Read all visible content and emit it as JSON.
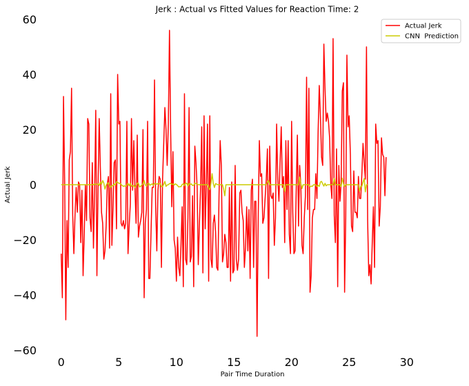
{
  "chart_data": {
    "type": "line",
    "title": "Jerk : Actual vs Fitted Values for Reaction Time: 2",
    "xlabel": "Pair Time Duration",
    "ylabel": "Actual Jerk",
    "xlim": [
      -1.6,
      34.5
    ],
    "ylim": [
      -60,
      60
    ],
    "x_ticks": [
      0,
      5,
      10,
      15,
      20,
      25,
      30
    ],
    "x_tick_labels": [
      "0",
      "5",
      "10",
      "15",
      "20",
      "25",
      "30"
    ],
    "y_ticks": [
      -60,
      -40,
      -20,
      0,
      20,
      40,
      60
    ],
    "y_tick_labels": [
      "−60",
      "−40",
      "−20",
      "0",
      "20",
      "40",
      "60"
    ],
    "grid": false,
    "legend_position": "top-right",
    "x_step": 0.1,
    "series": [
      {
        "name": "Actual Jerk",
        "color": "#ff0000",
        "values": [
          -25,
          -41,
          32,
          1,
          -49,
          -13,
          -30,
          9,
          12,
          35,
          -11,
          -25,
          -11,
          -1,
          -10,
          1,
          0,
          -21,
          -2,
          -33,
          -18,
          0,
          -13,
          24,
          22,
          -12,
          -17,
          8,
          -23,
          -3,
          27,
          -33,
          0,
          24,
          6,
          -10,
          -14,
          -27,
          -24,
          -15,
          0,
          3,
          -23,
          33,
          -22,
          -8,
          8,
          9,
          -16,
          40,
          22,
          23,
          -14,
          -15,
          -13,
          -16,
          -14,
          23,
          -25,
          -15,
          -7,
          24,
          -2,
          16,
          -1,
          -14,
          18,
          -19,
          -15,
          -13,
          -10,
          20,
          -41,
          -14,
          -9,
          23,
          -34,
          -34,
          -17,
          -1,
          -1,
          38,
          -8,
          -24,
          -2,
          3,
          2,
          -30,
          2,
          15,
          28,
          20,
          7,
          22,
          56,
          20,
          -8,
          12,
          -20,
          -23,
          -35,
          -19,
          -30,
          -33,
          -22,
          -8,
          -37,
          33,
          -27,
          -29,
          -12,
          28,
          -28,
          -26,
          -4,
          -37,
          14,
          8,
          -1,
          -29,
          -14,
          -1,
          21,
          -32,
          25,
          -16,
          0,
          22,
          -35,
          25,
          -27,
          -30,
          -14,
          -11,
          -17,
          -30,
          -31,
          -4,
          16,
          7,
          -28,
          -25,
          -18,
          -21,
          -30,
          -30,
          -1,
          -35,
          1,
          -32,
          -31,
          7,
          -27,
          -31,
          -27,
          -3,
          -2,
          -10,
          -13,
          -30,
          -23,
          -8,
          -24,
          -9,
          -34,
          -2,
          2,
          -30,
          -6,
          -6,
          -55,
          -12,
          16,
          3,
          4,
          -14,
          -12,
          -5,
          2,
          13,
          -34,
          14,
          -4,
          -5,
          -3,
          -22,
          -12,
          22,
          2,
          -6,
          8,
          21,
          -1,
          3,
          -21,
          16,
          -9,
          16,
          -18,
          -25,
          23,
          -10,
          -25,
          -24,
          -2,
          18,
          -15,
          7,
          0,
          -22,
          -25,
          -12,
          -4,
          39,
          -9,
          35,
          -39,
          -33,
          -12,
          -9,
          -9,
          4,
          -5,
          19,
          36,
          25,
          10,
          7,
          51,
          35,
          23,
          26,
          23,
          17,
          0,
          -5,
          53,
          -11,
          -21,
          13,
          -37,
          7,
          -6,
          1,
          34,
          37,
          -39,
          -12,
          47,
          21,
          25,
          11,
          -15,
          -17,
          5,
          -10,
          -10,
          -12,
          3,
          -5,
          -5,
          4,
          15,
          8,
          2,
          50,
          -13,
          -33,
          -29,
          -36,
          -21,
          -8,
          -30,
          22,
          15,
          16,
          -15,
          -8,
          17,
          11,
          10,
          -4,
          10
        ]
      },
      {
        "name": "CNN  Prediction",
        "color": "#cccc00",
        "values": [
          0,
          0,
          0,
          0,
          0,
          0,
          0,
          0,
          0,
          0,
          0,
          0,
          0,
          0,
          0,
          0,
          0,
          0,
          0,
          0,
          0,
          0,
          0,
          0,
          0,
          0,
          0,
          0,
          0,
          0.3,
          0.1,
          0.2,
          0.3,
          -0.3,
          1,
          0.2,
          1.5,
          0.6,
          -1.6,
          -0.2,
          0.5,
          0.7,
          -0.5,
          -1,
          -0.3,
          -0.4,
          0.3,
          -0.1,
          1.1,
          0.9,
          0.5,
          0.5,
          0.1,
          -0.3,
          -0.6,
          -0.4,
          -0.6,
          0.1,
          0.5,
          -0.4,
          0.5,
          -0.6,
          -0.3,
          -0.3,
          -1,
          -0.2,
          0.6,
          0.5,
          -0.8,
          -0.6,
          -0.1,
          0.3,
          1.5,
          0,
          -0.5,
          0.4,
          0.5,
          -0.2,
          0.1,
          0.3,
          -0.2,
          0.5,
          0.4,
          0.2,
          0.4,
          0.3,
          0.4,
          -0.7,
          -0.7,
          0.2,
          1.2,
          -0.6,
          -0.1,
          0,
          0.4,
          0.5,
          0.1,
          0.3,
          -0.1,
          0.3,
          0.1,
          -0.3,
          -0.8,
          -0.7,
          -0.7,
          0.1,
          0.3,
          -0.4,
          0.6,
          0.5,
          -0.4,
          0.5,
          0.1,
          0.3,
          -0.3,
          -0.2,
          0.6,
          0.4,
          0.2,
          0,
          0,
          0,
          0,
          0,
          0,
          0,
          0,
          0,
          -1.2,
          -1.8,
          0.5,
          4,
          0.5,
          -1,
          0.4,
          0.2,
          0,
          0,
          0,
          0,
          0,
          -1.6,
          -4,
          0,
          0,
          0,
          0,
          0,
          0,
          0,
          0,
          0,
          0,
          0,
          0,
          0,
          0,
          0,
          0,
          0,
          0,
          0,
          0,
          0,
          0,
          0,
          0,
          0,
          0,
          0,
          0,
          0,
          0,
          0,
          0,
          0,
          0,
          0,
          0,
          1,
          1.5,
          0,
          0,
          0,
          0,
          0,
          0,
          0,
          0,
          0,
          0,
          0,
          0,
          0,
          -2.5,
          0,
          0,
          0,
          0,
          0,
          0,
          0,
          0,
          0,
          0,
          0,
          0,
          2.8,
          0.5,
          -1.4,
          0,
          0,
          0,
          0,
          0,
          0,
          -0.8,
          -0.5,
          -0.6,
          0,
          0,
          0,
          -0.7,
          -0.2,
          -0.6,
          1,
          1.2,
          0.3,
          -0.5,
          0.5,
          -0.4,
          0,
          0,
          0,
          0,
          0,
          0,
          2.3,
          0,
          0,
          0,
          0,
          0,
          -0.6,
          2.4,
          0.4,
          -0.7,
          0,
          0,
          0,
          0,
          0,
          0,
          0,
          0,
          0,
          0,
          0,
          0,
          -2.3,
          -0.6,
          -0.5,
          1,
          2.3,
          -2.6,
          0,
          0
        ]
      }
    ]
  }
}
